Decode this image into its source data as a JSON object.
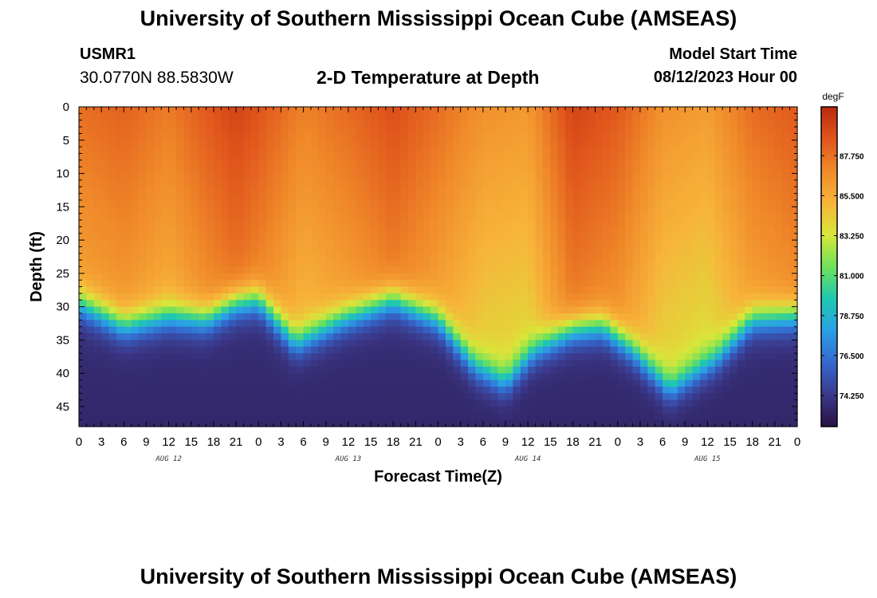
{
  "header": {
    "title": "University of Southern Mississippi Ocean Cube (AMSEAS)",
    "station": "USMR1",
    "coords": "30.0770N  88.5830W",
    "subtitle": "2-D Temperature at Depth",
    "model_start_label": "Model Start Time",
    "model_start_value": "08/12/2023 Hour 00"
  },
  "footer": {
    "title": "University of Southern Mississippi Ocean Cube (AMSEAS)"
  },
  "chart_data": {
    "type": "heatmap",
    "title": "2-D Temperature at Depth",
    "xlabel": "Forecast Time(Z)",
    "ylabel": "Depth (ft)",
    "x_tick_labels": [
      "0",
      "3",
      "6",
      "9",
      "12",
      "15",
      "18",
      "21",
      "0",
      "3",
      "6",
      "9",
      "12",
      "15",
      "18",
      "21",
      "0",
      "3",
      "6",
      "9",
      "12",
      "15",
      "18",
      "21",
      "0",
      "3",
      "6",
      "9",
      "12",
      "15",
      "18",
      "21",
      "0"
    ],
    "x_range_hours": [
      0,
      96
    ],
    "day_labels": [
      {
        "label": "AUG 12",
        "hour": 12
      },
      {
        "label": "AUG 13",
        "hour": 36
      },
      {
        "label": "AUG 14",
        "hour": 60
      },
      {
        "label": "AUG 15",
        "hour": 84
      }
    ],
    "y_ticks": [
      0,
      5,
      10,
      15,
      20,
      25,
      30,
      35,
      40,
      45
    ],
    "y_range_ft": [
      0,
      48
    ],
    "y_inverted": true,
    "colorbar": {
      "unit": "degF",
      "range": [
        72.5,
        90.5
      ],
      "ticks": [
        87.75,
        85.5,
        83.25,
        81.0,
        78.75,
        76.5,
        74.25
      ],
      "tick_labels": [
        "87.750",
        "85.500",
        "83.250",
        "81.000",
        "78.750",
        "76.500",
        "74.250"
      ],
      "colors": [
        "#2a1041",
        "#3b3a8c",
        "#3468cc",
        "#2aa0e6",
        "#1fc8b0",
        "#6fe25a",
        "#d9e63a",
        "#f7b43a",
        "#f08a2a",
        "#e0561c",
        "#b8290f"
      ]
    },
    "thermocline_depth_ft": {
      "hours": [
        0,
        6,
        12,
        17,
        21,
        24,
        29,
        35,
        42,
        48,
        53,
        57,
        61,
        66,
        70,
        74,
        79,
        85,
        90,
        96
      ],
      "depths": [
        29.5,
        33.0,
        31.5,
        32.0,
        29.5,
        29.0,
        35.5,
        32.0,
        29.0,
        32.0,
        39.0,
        41.5,
        36.5,
        33.5,
        33.0,
        36.5,
        42.5,
        38.0,
        32.0,
        31.5
      ]
    },
    "surface_temperature_degF": {
      "hours": [
        0,
        6,
        12,
        17,
        21,
        24,
        30,
        36,
        42,
        48,
        54,
        60,
        66,
        72,
        78,
        84,
        90,
        96
      ],
      "values": [
        87.8,
        88.3,
        87.4,
        88.6,
        89.4,
        88.8,
        87.2,
        88.0,
        89.0,
        87.9,
        86.6,
        86.3,
        89.4,
        88.6,
        86.6,
        86.1,
        87.9,
        88.6
      ]
    },
    "bottom_temperature_degF": 73.5,
    "grid": false
  }
}
